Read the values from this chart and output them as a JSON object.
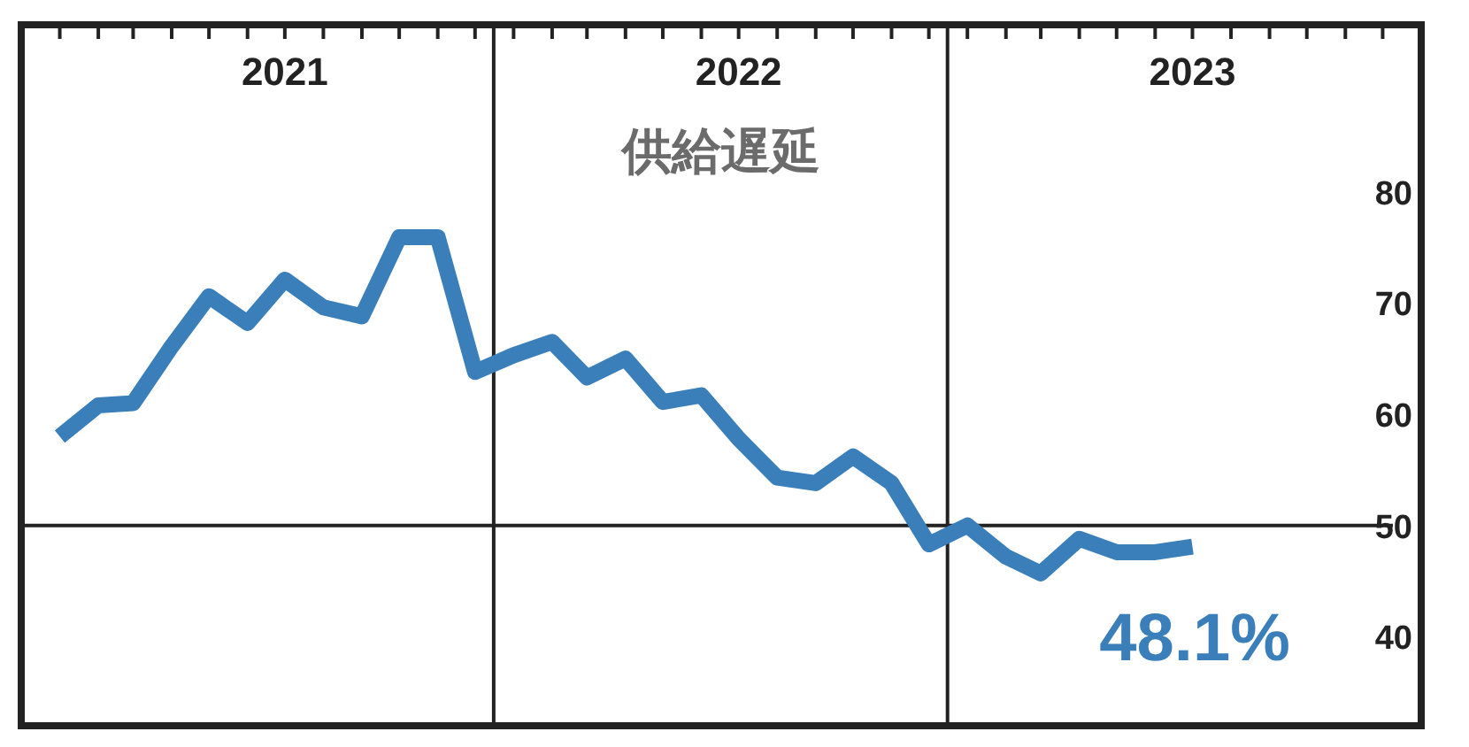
{
  "chart_data": {
    "type": "line",
    "title": "供給遅延",
    "x": [
      "2021-01",
      "2021-02",
      "2021-03",
      "2021-04",
      "2021-05",
      "2021-06",
      "2021-07",
      "2021-08",
      "2021-09",
      "2021-10",
      "2021-11",
      "2021-12",
      "2022-01",
      "2022-02",
      "2022-03",
      "2022-04",
      "2022-05",
      "2022-06",
      "2022-07",
      "2022-08",
      "2022-09",
      "2022-10",
      "2022-11",
      "2022-12",
      "2023-01",
      "2023-02",
      "2023-03",
      "2023-04",
      "2023-05",
      "2023-06",
      "2023-07"
    ],
    "series": [
      {
        "color": "#3a7fba",
        "values": [
          58.0,
          60.8,
          61.0,
          66.1,
          70.6,
          68.2,
          72.1,
          69.6,
          68.8,
          75.9,
          75.9,
          63.8,
          65.3,
          66.5,
          63.3,
          65.0,
          61.1,
          61.7,
          57.8,
          54.3,
          53.8,
          56.2,
          53.8,
          48.3,
          50.0,
          47.2,
          45.7,
          48.8,
          47.6,
          47.6,
          48.1
        ]
      }
    ],
    "xlim": [
      "2020-12-01",
      "2024-01-01"
    ],
    "xticks": [
      {
        "value": "2021-01",
        "label": null
      },
      {
        "value": "2021-02",
        "label": null
      },
      {
        "value": "2021-03",
        "label": null
      },
      {
        "value": "2021-04",
        "label": null
      },
      {
        "value": "2021-05",
        "label": null
      },
      {
        "value": "2021-06",
        "label": null
      },
      {
        "value": "2021-07",
        "label": "2021"
      },
      {
        "value": "2021-08",
        "label": null
      },
      {
        "value": "2021-09",
        "label": null
      },
      {
        "value": "2021-10",
        "label": null
      },
      {
        "value": "2021-11",
        "label": null
      },
      {
        "value": "2021-12",
        "label": null
      },
      {
        "value": "2022-01",
        "label": null
      },
      {
        "value": "2022-02",
        "label": null
      },
      {
        "value": "2022-03",
        "label": null
      },
      {
        "value": "2022-04",
        "label": null
      },
      {
        "value": "2022-05",
        "label": null
      },
      {
        "value": "2022-06",
        "label": null
      },
      {
        "value": "2022-07",
        "label": "2022"
      },
      {
        "value": "2022-08",
        "label": null
      },
      {
        "value": "2022-09",
        "label": null
      },
      {
        "value": "2022-10",
        "label": null
      },
      {
        "value": "2022-11",
        "label": null
      },
      {
        "value": "2022-12",
        "label": null
      },
      {
        "value": "2023-01",
        "label": null
      },
      {
        "value": "2023-02",
        "label": null
      },
      {
        "value": "2023-03",
        "label": null
      },
      {
        "value": "2023-04",
        "label": null
      },
      {
        "value": "2023-05",
        "label": null
      },
      {
        "value": "2023-06",
        "label": null
      },
      {
        "value": "2023-07",
        "label": "2023"
      },
      {
        "value": "2023-08",
        "label": null
      },
      {
        "value": "2023-09",
        "label": null
      },
      {
        "value": "2023-10",
        "label": null
      },
      {
        "value": "2023-11",
        "label": null
      },
      {
        "value": "2023-12",
        "label": null
      }
    ],
    "ylim": [
      32,
      95
    ],
    "yticks": [
      40,
      50,
      60,
      70,
      80
    ],
    "ref_lines": [
      {
        "axis": "y",
        "value": 50,
        "color": "#222222"
      },
      {
        "axis": "x",
        "value": "2021-12-16",
        "color": "#222222"
      },
      {
        "axis": "x",
        "value": "2022-12-16",
        "color": "#222222"
      }
    ],
    "annotations": [
      "48.1%"
    ],
    "grid": false,
    "marker": "none",
    "line_style": "solid"
  }
}
